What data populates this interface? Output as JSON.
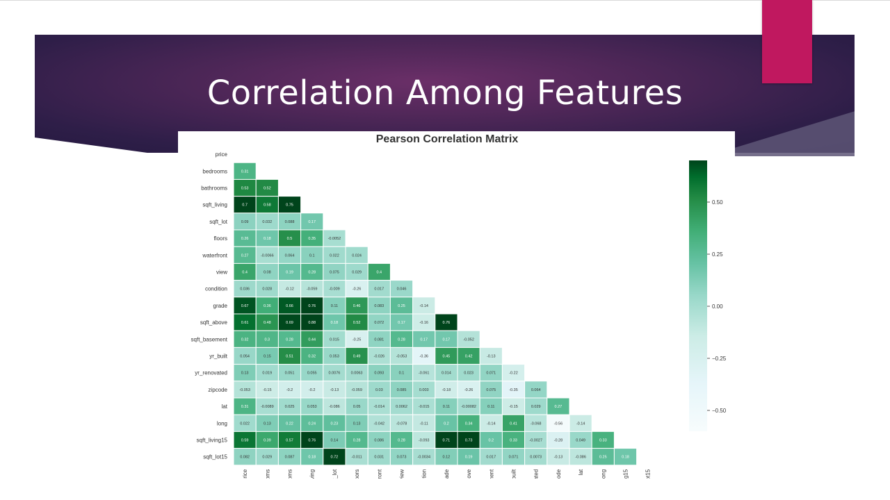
{
  "slide": {
    "title": "Correlation Among Features"
  },
  "colors": {
    "accent": "#c0185f",
    "banner": "#4f2758",
    "cmap_low": "#f7fcf5",
    "cmap_high": "#00441b"
  },
  "chart_data": {
    "type": "heatmap",
    "title": "Pearson Correlation Matrix",
    "triangle": "lower",
    "row_labels": [
      "price",
      "bedrooms",
      "bathrooms",
      "sqft_living",
      "sqft_lot",
      "floors",
      "waterfront",
      "view",
      "condition",
      "grade",
      "sqft_above",
      "sqft_basement",
      "yr_built",
      "yr_renovated",
      "zipcode",
      "lat",
      "long",
      "sqft_living15",
      "sqft_lot15"
    ],
    "col_labels": [
      "price",
      "bedrooms",
      "bathrooms",
      "sqft_living",
      "sqft_lot",
      "floors",
      "waterfront",
      "view",
      "condition",
      "grade",
      "sqft_above",
      "sqft_basement",
      "yr_built",
      "yr_renovated",
      "zipcode",
      "lat",
      "long",
      "sqft_living15",
      "sqft_lot15"
    ],
    "values": [
      [],
      [
        "0.31"
      ],
      [
        "0.53",
        "0.52"
      ],
      [
        "0.7",
        "0.58",
        "0.75"
      ],
      [
        "0.09",
        "0.032",
        "0.088",
        "0.17"
      ],
      [
        "0.26",
        "0.18",
        "0.5",
        "0.35",
        "-0.0052"
      ],
      [
        "0.27",
        "-0.0066",
        "0.064",
        "0.1",
        "0.022",
        "0.024"
      ],
      [
        "0.4",
        "0.08",
        "0.19",
        "0.28",
        "0.075",
        "0.029",
        "0.4"
      ],
      [
        "0.036",
        "0.028",
        "-0.12",
        "-0.059",
        "-0.009",
        "-0.26",
        "0.017",
        "0.046"
      ],
      [
        "0.67",
        "0.36",
        "0.66",
        "0.76",
        "0.11",
        "0.46",
        "0.083",
        "0.25",
        "-0.14"
      ],
      [
        "0.61",
        "0.48",
        "0.69",
        "0.88",
        "0.18",
        "0.52",
        "0.072",
        "0.17",
        "-0.16",
        "0.76"
      ],
      [
        "0.32",
        "0.3",
        "0.28",
        "0.44",
        "0.015",
        "-0.25",
        "0.081",
        "0.28",
        "0.17",
        "0.17",
        "-0.052"
      ],
      [
        "0.054",
        "0.15",
        "0.51",
        "0.32",
        "0.053",
        "0.49",
        "-0.026",
        "-0.053",
        "-0.36",
        "0.45",
        "0.42",
        "-0.13"
      ],
      [
        "0.13",
        "0.019",
        "0.051",
        "0.055",
        "0.0076",
        "0.0063",
        "0.093",
        "0.1",
        "-0.061",
        "0.014",
        "0.023",
        "0.071",
        "-0.22"
      ],
      [
        "-0.053",
        "-0.15",
        "-0.2",
        "-0.2",
        "-0.13",
        "-0.059",
        "0.03",
        "0.085",
        "0.003",
        "-0.18",
        "-0.26",
        "0.075",
        "-0.35",
        "0.064"
      ],
      [
        "0.31",
        "-0.0089",
        "0.025",
        "0.053",
        "-0.086",
        "0.05",
        "-0.014",
        "0.0062",
        "-0.015",
        "0.11",
        "-0.00082",
        "0.11",
        "-0.15",
        "0.029",
        "0.27"
      ],
      [
        "0.022",
        "0.13",
        "0.22",
        "0.24",
        "0.23",
        "0.13",
        "-0.042",
        "-0.078",
        "-0.11",
        "0.2",
        "0.34",
        "-0.14",
        "0.41",
        "-0.068",
        "-0.56",
        "-0.14"
      ],
      [
        "0.59",
        "0.39",
        "0.57",
        "0.76",
        "0.14",
        "0.28",
        "0.086",
        "0.28",
        "-0.093",
        "0.71",
        "0.73",
        "0.2",
        "0.33",
        "-0.0027",
        "-0.28",
        "0.049",
        "0.33"
      ],
      [
        "0.082",
        "0.029",
        "0.087",
        "0.18",
        "0.72",
        "-0.011",
        "0.031",
        "0.073",
        "-0.0034",
        "0.12",
        "0.19",
        "0.017",
        "0.071",
        "0.0073",
        "-0.13",
        "-0.086",
        "0.25",
        "0.18"
      ]
    ],
    "colorbar": {
      "range": [
        -0.6,
        0.7
      ],
      "ticks": [
        "0.50",
        "0.25",
        "0.00",
        "−0.25",
        "−0.50"
      ]
    }
  }
}
